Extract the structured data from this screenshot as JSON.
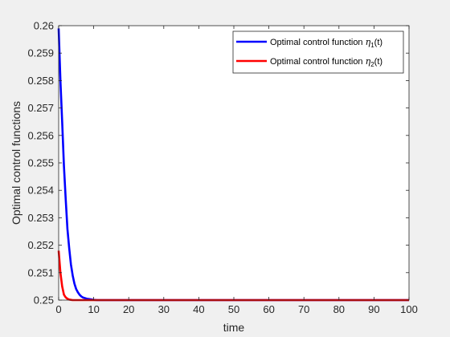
{
  "chart_data": {
    "type": "line",
    "title": "",
    "xlabel": "time",
    "ylabel": "Optimal control functions",
    "xlim": [
      0,
      100
    ],
    "ylim": [
      0.25,
      0.26
    ],
    "xticks": [
      0,
      10,
      20,
      30,
      40,
      50,
      60,
      70,
      80,
      90,
      100
    ],
    "xtick_labels": [
      "0",
      "10",
      "20",
      "30",
      "40",
      "50",
      "60",
      "70",
      "80",
      "90",
      "100"
    ],
    "yticks": [
      0.25,
      0.251,
      0.252,
      0.253,
      0.254,
      0.255,
      0.256,
      0.257,
      0.258,
      0.259,
      0.26
    ],
    "ytick_labels": [
      "0.25",
      "0.251",
      "0.252",
      "0.253",
      "0.254",
      "0.255",
      "0.256",
      "0.257",
      "0.258",
      "0.259",
      "0.26"
    ],
    "grid": false,
    "legend_position": "top-right",
    "series": [
      {
        "label_prefix": "Optimal control function ",
        "symbol": "η",
        "subscript": "1",
        "label_suffix": "(t)",
        "color": "#0000ff",
        "x": [
          0,
          0.5,
          1,
          1.5,
          2,
          2.5,
          3,
          3.5,
          4,
          4.5,
          5,
          5.5,
          6,
          6.5,
          7,
          8,
          9,
          10,
          11,
          12,
          14,
          16,
          20,
          30,
          40,
          50,
          60,
          70,
          80,
          90,
          100
        ],
        "values": [
          0.2599,
          0.258,
          0.2565,
          0.2549,
          0.2537,
          0.2526,
          0.2519,
          0.2513,
          0.2509,
          0.2506,
          0.2504,
          0.25028,
          0.25019,
          0.25013,
          0.25009,
          0.25005,
          0.25003,
          0.25001,
          0.25,
          0.25,
          0.25,
          0.25,
          0.25,
          0.25,
          0.25,
          0.25,
          0.25,
          0.25,
          0.25,
          0.25,
          0.25
        ]
      },
      {
        "label_prefix": "Optimal control function ",
        "symbol": "η",
        "subscript": "2",
        "label_suffix": "(t)",
        "color": "#ff0000",
        "x": [
          0,
          0.5,
          1,
          1.5,
          2,
          2.5,
          3,
          3.5,
          4,
          5,
          6,
          7,
          8,
          10,
          15,
          20,
          30,
          40,
          50,
          60,
          70,
          80,
          90,
          100
        ],
        "values": [
          0.2518,
          0.251,
          0.2505,
          0.2502,
          0.2501,
          0.25005,
          0.25002,
          0.25001,
          0.25,
          0.25,
          0.25,
          0.25,
          0.25,
          0.25,
          0.25,
          0.25,
          0.25,
          0.25,
          0.25,
          0.25,
          0.25,
          0.25,
          0.25,
          0.25
        ]
      }
    ]
  }
}
